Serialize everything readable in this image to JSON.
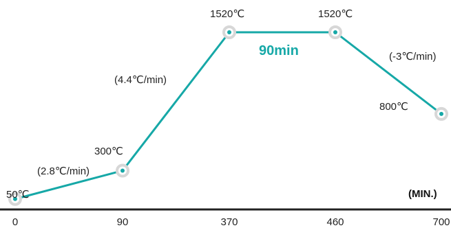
{
  "chart_data": {
    "type": "line",
    "x": [
      0,
      90,
      370,
      460,
      700
    ],
    "y": [
      50,
      300,
      1520,
      1520,
      800
    ],
    "point_labels": [
      "50℃",
      "300℃",
      "1520℃",
      "1520℃",
      "800℃"
    ],
    "segment_labels": [
      "(2.8℃/min)",
      "(4.4℃/min)",
      "90min",
      "(-3℃/min)"
    ],
    "x_tick_labels": [
      "0",
      "90",
      "370",
      "460",
      "700"
    ],
    "x_unit_label": "(MIN.)",
    "xlim": [
      0,
      700
    ],
    "ylim": [
      0,
      1520
    ],
    "grid": false,
    "colors": {
      "line": "#16a8a7",
      "marker_ring": "#d7d7d7",
      "marker_dot": "#16a8a7",
      "axis": "#222222",
      "hold_label": "#16a8a7"
    }
  }
}
